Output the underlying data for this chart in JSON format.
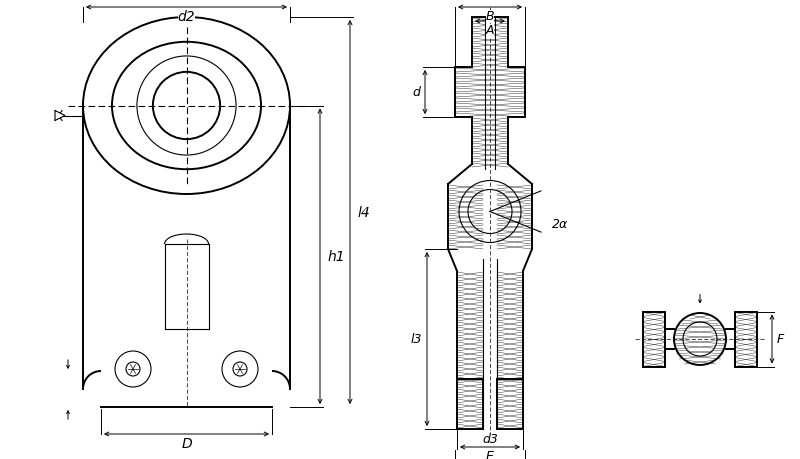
{
  "bg_color": "#ffffff",
  "line_color": "#000000",
  "figsize": [
    8.0,
    4.6
  ],
  "dpi": 100,
  "labels": {
    "d2": "d2",
    "D": "D",
    "h1": "h1",
    "l4": "l4",
    "B": "B",
    "A": "A",
    "d": "d",
    "alpha": "2α",
    "l3": "l3",
    "d3": "d3",
    "E": "E",
    "F": "F"
  },
  "lw_thick": 1.4,
  "lw_thin": 0.8,
  "lw_dim": 0.7,
  "lw_hatch": 0.35
}
